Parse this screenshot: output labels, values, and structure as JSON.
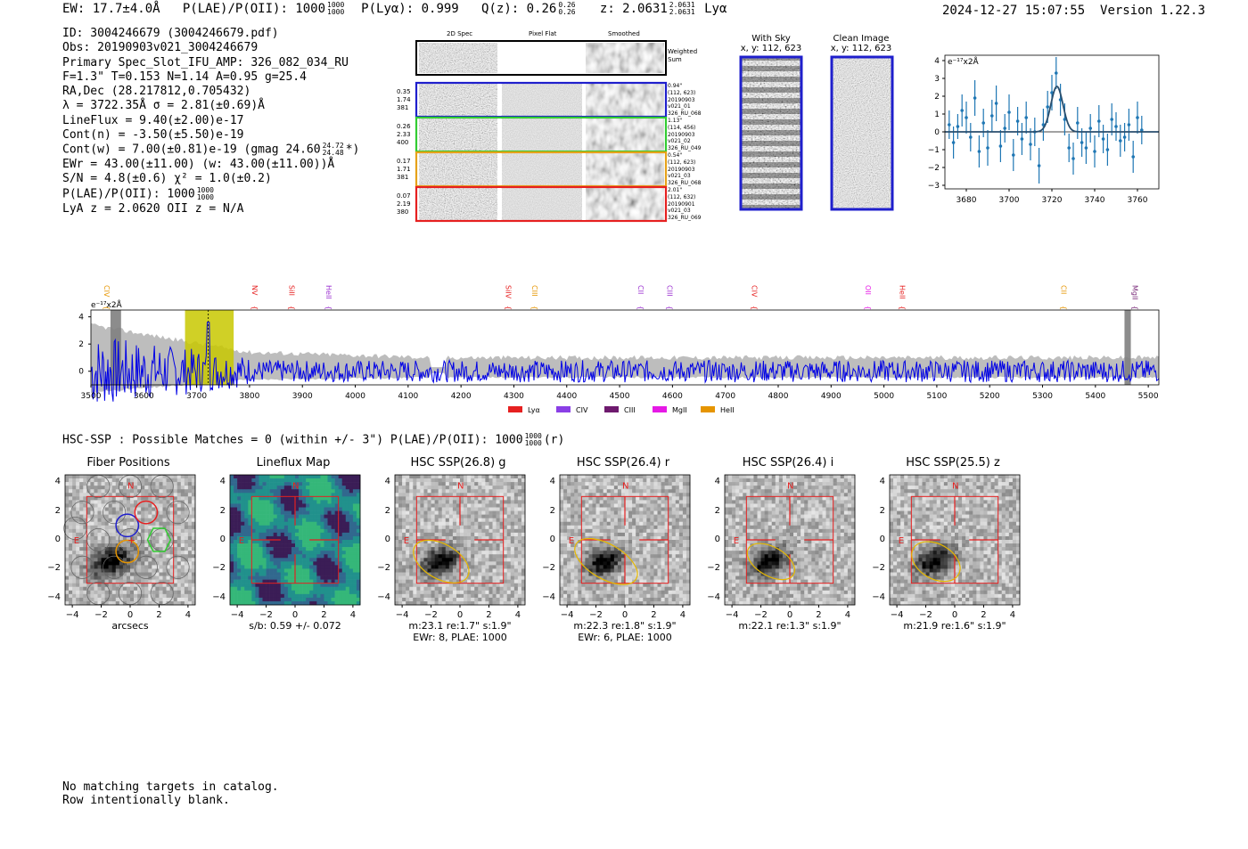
{
  "header": {
    "ew": "EW: 17.7±4.0Å",
    "plae_label": "P(LAE)/P(OII): 1000",
    "plae_hi": "1000",
    "plae_lo": "1000",
    "plya": "P(Lyα): 0.999",
    "qz": "Q(z): 0.26",
    "qz_hi": "0.26",
    "qz_lo": "0.26",
    "z": "z: 2.0631",
    "z_hi": "2.0631",
    "z_lo": "2.0631",
    "z_line": "Lyα",
    "timestamp": "2024-12-27 15:07:55",
    "version": "Version 1.22.3"
  },
  "info": {
    "id": "ID: 3004246679 (3004246679.pdf)",
    "obs": "Obs: 20190903v021_3004246679",
    "primary": "Primary Spec_Slot_IFU_AMP: 326_082_034_RU",
    "params": "F=1.3\"  T=0.153  N=1.14  A=0.95  g=25.4",
    "radec": "RA,Dec (28.217812,0.705432)",
    "lambda": "λ = 3722.35Å   σ = 2.81(±0.69)Å",
    "lineflux": "LineFlux = 9.40(±2.00)e-17",
    "contn": "Cont(n) = -3.50(±5.50)e-19",
    "contw": "Cont(w) = 7.00(±0.81)e-19 (gmag 24.60",
    "contw_hi": "24.72",
    "contw_lo": "24.48",
    "contw_end": "*)",
    "ewr": "EWr = 43.00(±11.00) (w: 43.00(±11.00))Å",
    "sn": "S/N = 4.8(±0.6)  χ² = 1.0(±0.2)",
    "plae": "P(LAE)/P(OII): 1000",
    "plae_hi": "1000",
    "plae_lo": "1000",
    "lya": "LyA z = 2.0620  OII z = N/A"
  },
  "cutouts": {
    "col_headers": [
      "2D Spec",
      "Pixel Flat",
      "Smoothed"
    ],
    "weighted_sum": "Weighted Sum",
    "rows": [
      {
        "left": [
          "0.35",
          "1.74",
          "381"
        ],
        "right": [
          "0.94\"",
          "(112, 623)",
          "20190903",
          "v021_01",
          "326_RU_068"
        ],
        "color": "#1f1fcc"
      },
      {
        "left": [
          "0.26",
          "2.33",
          "400"
        ],
        "right": [
          "1.13\"",
          "(114, 456)",
          "20190903",
          "v021_02",
          "326_RU_049"
        ],
        "color": "#33cc33"
      },
      {
        "left": [
          "0.17",
          "1.71",
          "381"
        ],
        "right": [
          "0.54\"",
          "(112, 623)",
          "20190903",
          "v021_03",
          "326_RU_068"
        ],
        "color": "#e6a21a"
      },
      {
        "left": [
          "0.07",
          "2.19",
          "380"
        ],
        "right": [
          "2.01\"",
          "(112, 632)",
          "20190901",
          "v021_03",
          "326_RU_069"
        ],
        "color": "#e62020"
      }
    ]
  },
  "sky": {
    "with_sky_title": "With Sky",
    "with_sky_sub": "x, y: 112, 623",
    "clean_title": "Clean Image",
    "clean_sub": "x, y: 112, 623"
  },
  "zoom_chart": {
    "unit_label": "e⁻¹⁷x2Å",
    "type": "scatter",
    "xlim": [
      3670,
      3770
    ],
    "ylim": [
      -3.2,
      4.3
    ],
    "xticks": [
      "3680",
      "3700",
      "3720",
      "3740",
      "3760"
    ],
    "yticks": [
      "4",
      "3",
      "2",
      "1",
      "0",
      "−1",
      "−2",
      "−3"
    ],
    "points": [
      [
        3672,
        0.4,
        0.8
      ],
      [
        3674,
        -0.6,
        0.9
      ],
      [
        3676,
        0.3,
        0.7
      ],
      [
        3678,
        1.2,
        0.9
      ],
      [
        3680,
        0.8,
        0.9
      ],
      [
        3682,
        -0.3,
        0.8
      ],
      [
        3684,
        1.9,
        1.0
      ],
      [
        3686,
        -1.1,
        0.9
      ],
      [
        3688,
        0.5,
        0.8
      ],
      [
        3690,
        -0.9,
        1.0
      ],
      [
        3692,
        0.9,
        0.9
      ],
      [
        3694,
        1.6,
        1.0
      ],
      [
        3696,
        -0.8,
        0.9
      ],
      [
        3698,
        0.2,
        0.8
      ],
      [
        3700,
        1.1,
        1.0
      ],
      [
        3702,
        -1.3,
        0.9
      ],
      [
        3704,
        0.6,
        0.8
      ],
      [
        3706,
        -0.4,
        0.9
      ],
      [
        3708,
        0.8,
        0.9
      ],
      [
        3710,
        -0.7,
        0.9
      ],
      [
        3712,
        0.0,
        0.8
      ],
      [
        3714,
        -1.9,
        1.0
      ],
      [
        3716,
        0.4,
        0.9
      ],
      [
        3718,
        1.4,
        0.9
      ],
      [
        3720,
        2.2,
        1.0
      ],
      [
        3722,
        3.3,
        0.9
      ],
      [
        3724,
        1.8,
        0.9
      ],
      [
        3726,
        0.7,
        0.9
      ],
      [
        3728,
        -0.9,
        0.8
      ],
      [
        3730,
        -1.5,
        0.9
      ],
      [
        3732,
        0.5,
        0.9
      ],
      [
        3734,
        -0.6,
        0.8
      ],
      [
        3736,
        -0.9,
        0.9
      ],
      [
        3738,
        0.2,
        0.8
      ],
      [
        3740,
        -1.1,
        0.9
      ],
      [
        3742,
        0.6,
        0.9
      ],
      [
        3744,
        -0.4,
        0.8
      ],
      [
        3746,
        -1.0,
        0.9
      ],
      [
        3748,
        0.7,
        0.9
      ],
      [
        3750,
        0.3,
        0.8
      ],
      [
        3752,
        -0.5,
        0.9
      ],
      [
        3754,
        -0.3,
        0.8
      ],
      [
        3756,
        0.4,
        0.9
      ],
      [
        3758,
        -1.4,
        0.9
      ],
      [
        3760,
        0.8,
        0.9
      ],
      [
        3762,
        0.1,
        0.8
      ]
    ],
    "fit": {
      "amplitude": 2.55,
      "center": 3722.35,
      "sigma": 2.81,
      "continuum": 0.0
    }
  },
  "spectrum_chart": {
    "type": "line",
    "unit_label": "e⁻¹⁷x2Å",
    "xlim": [
      3500,
      5520
    ],
    "ylim": [
      -1,
      4.5
    ],
    "xticks": [
      "3500",
      "3600",
      "3700",
      "3800",
      "3900",
      "4000",
      "4100",
      "4200",
      "4300",
      "4400",
      "4500",
      "4600",
      "4700",
      "4800",
      "4900",
      "5000",
      "5100",
      "5200",
      "5300",
      "5400",
      "5500"
    ],
    "yticks": [
      "4",
      "2",
      "0"
    ],
    "line_markers": [
      {
        "label": "CIV",
        "x": 3520,
        "color": "#e69500"
      },
      {
        "label": "NV",
        "x": 3800,
        "color": "#e62020"
      },
      {
        "label": "SiII",
        "x": 3870,
        "color": "#e62020"
      },
      {
        "label": "HeII",
        "x": 3940,
        "color": "#9b30d0"
      },
      {
        "label": "SiIV",
        "x": 4280,
        "color": "#e62020"
      },
      {
        "label": "CIII",
        "x": 4330,
        "color": "#e69500"
      },
      {
        "label": "CII",
        "x": 4530,
        "color": "#9b30d0"
      },
      {
        "label": "CIII",
        "x": 4585,
        "color": "#9b30d0"
      },
      {
        "label": "CIV",
        "x": 4745,
        "color": "#e62020"
      },
      {
        "label": "OII",
        "x": 4960,
        "color": "#e619e6"
      },
      {
        "label": "HeII",
        "x": 5025,
        "color": "#e62020"
      },
      {
        "label": "CII",
        "x": 5330,
        "color": "#e69500"
      },
      {
        "label": "MgII",
        "x": 5465,
        "color": "#7a2a7a"
      }
    ],
    "highlight": {
      "from": 3678,
      "to": 3770,
      "line": 3722
    },
    "gray_bars": [
      [
        3537,
        3557
      ],
      [
        5455,
        5467
      ]
    ],
    "legend": [
      {
        "label": "Lyα",
        "color": "#e62020"
      },
      {
        "label": "CIV",
        "color": "#8a3fe6"
      },
      {
        "label": "CIII",
        "color": "#6e1a6e"
      },
      {
        "label": "MgII",
        "color": "#e619e6"
      },
      {
        "label": "HeII",
        "color": "#e69500"
      }
    ]
  },
  "hsc": {
    "headline": "HSC-SSP : Possible Matches = 0 (within +/- 3\")  P(LAE)/P(OII): 1000",
    "headline_hi": "1000",
    "headline_lo": "1000",
    "headline_end": "(r)",
    "panels": [
      {
        "title": "Fiber Positions",
        "cap1": "arcsecs",
        "cap2": ""
      },
      {
        "title": "Lineflux Map",
        "cap1": "s/b: 0.59 +/- 0.072",
        "cap2": ""
      },
      {
        "title": "HSC SSP(26.8) g",
        "cap1": "m:23.1  re:1.7\"  s:1.9\"",
        "cap2": "EWr: 8, PLAE: 1000"
      },
      {
        "title": "HSC SSP(26.4) r",
        "cap1": "m:22.3  re:1.8\"  s:1.9\"",
        "cap2": "EWr: 6, PLAE: 1000"
      },
      {
        "title": "HSC SSP(26.4) i",
        "cap1": "m:22.1  re:1.3\"  s:1.9\"",
        "cap2": ""
      },
      {
        "title": "HSC SSP(25.5) z",
        "cap1": "m:21.9  re:1.6\"  s:1.9\"",
        "cap2": ""
      }
    ],
    "ticks": [
      "−4",
      "−2",
      "0",
      "2",
      "4"
    ],
    "yticks": [
      "4",
      "2",
      "0",
      "−2",
      "−4"
    ],
    "n_label": "N",
    "e_label": "E"
  },
  "footer": {
    "line1": "No matching targets in catalog.",
    "line2": "Row intentionally blank."
  }
}
